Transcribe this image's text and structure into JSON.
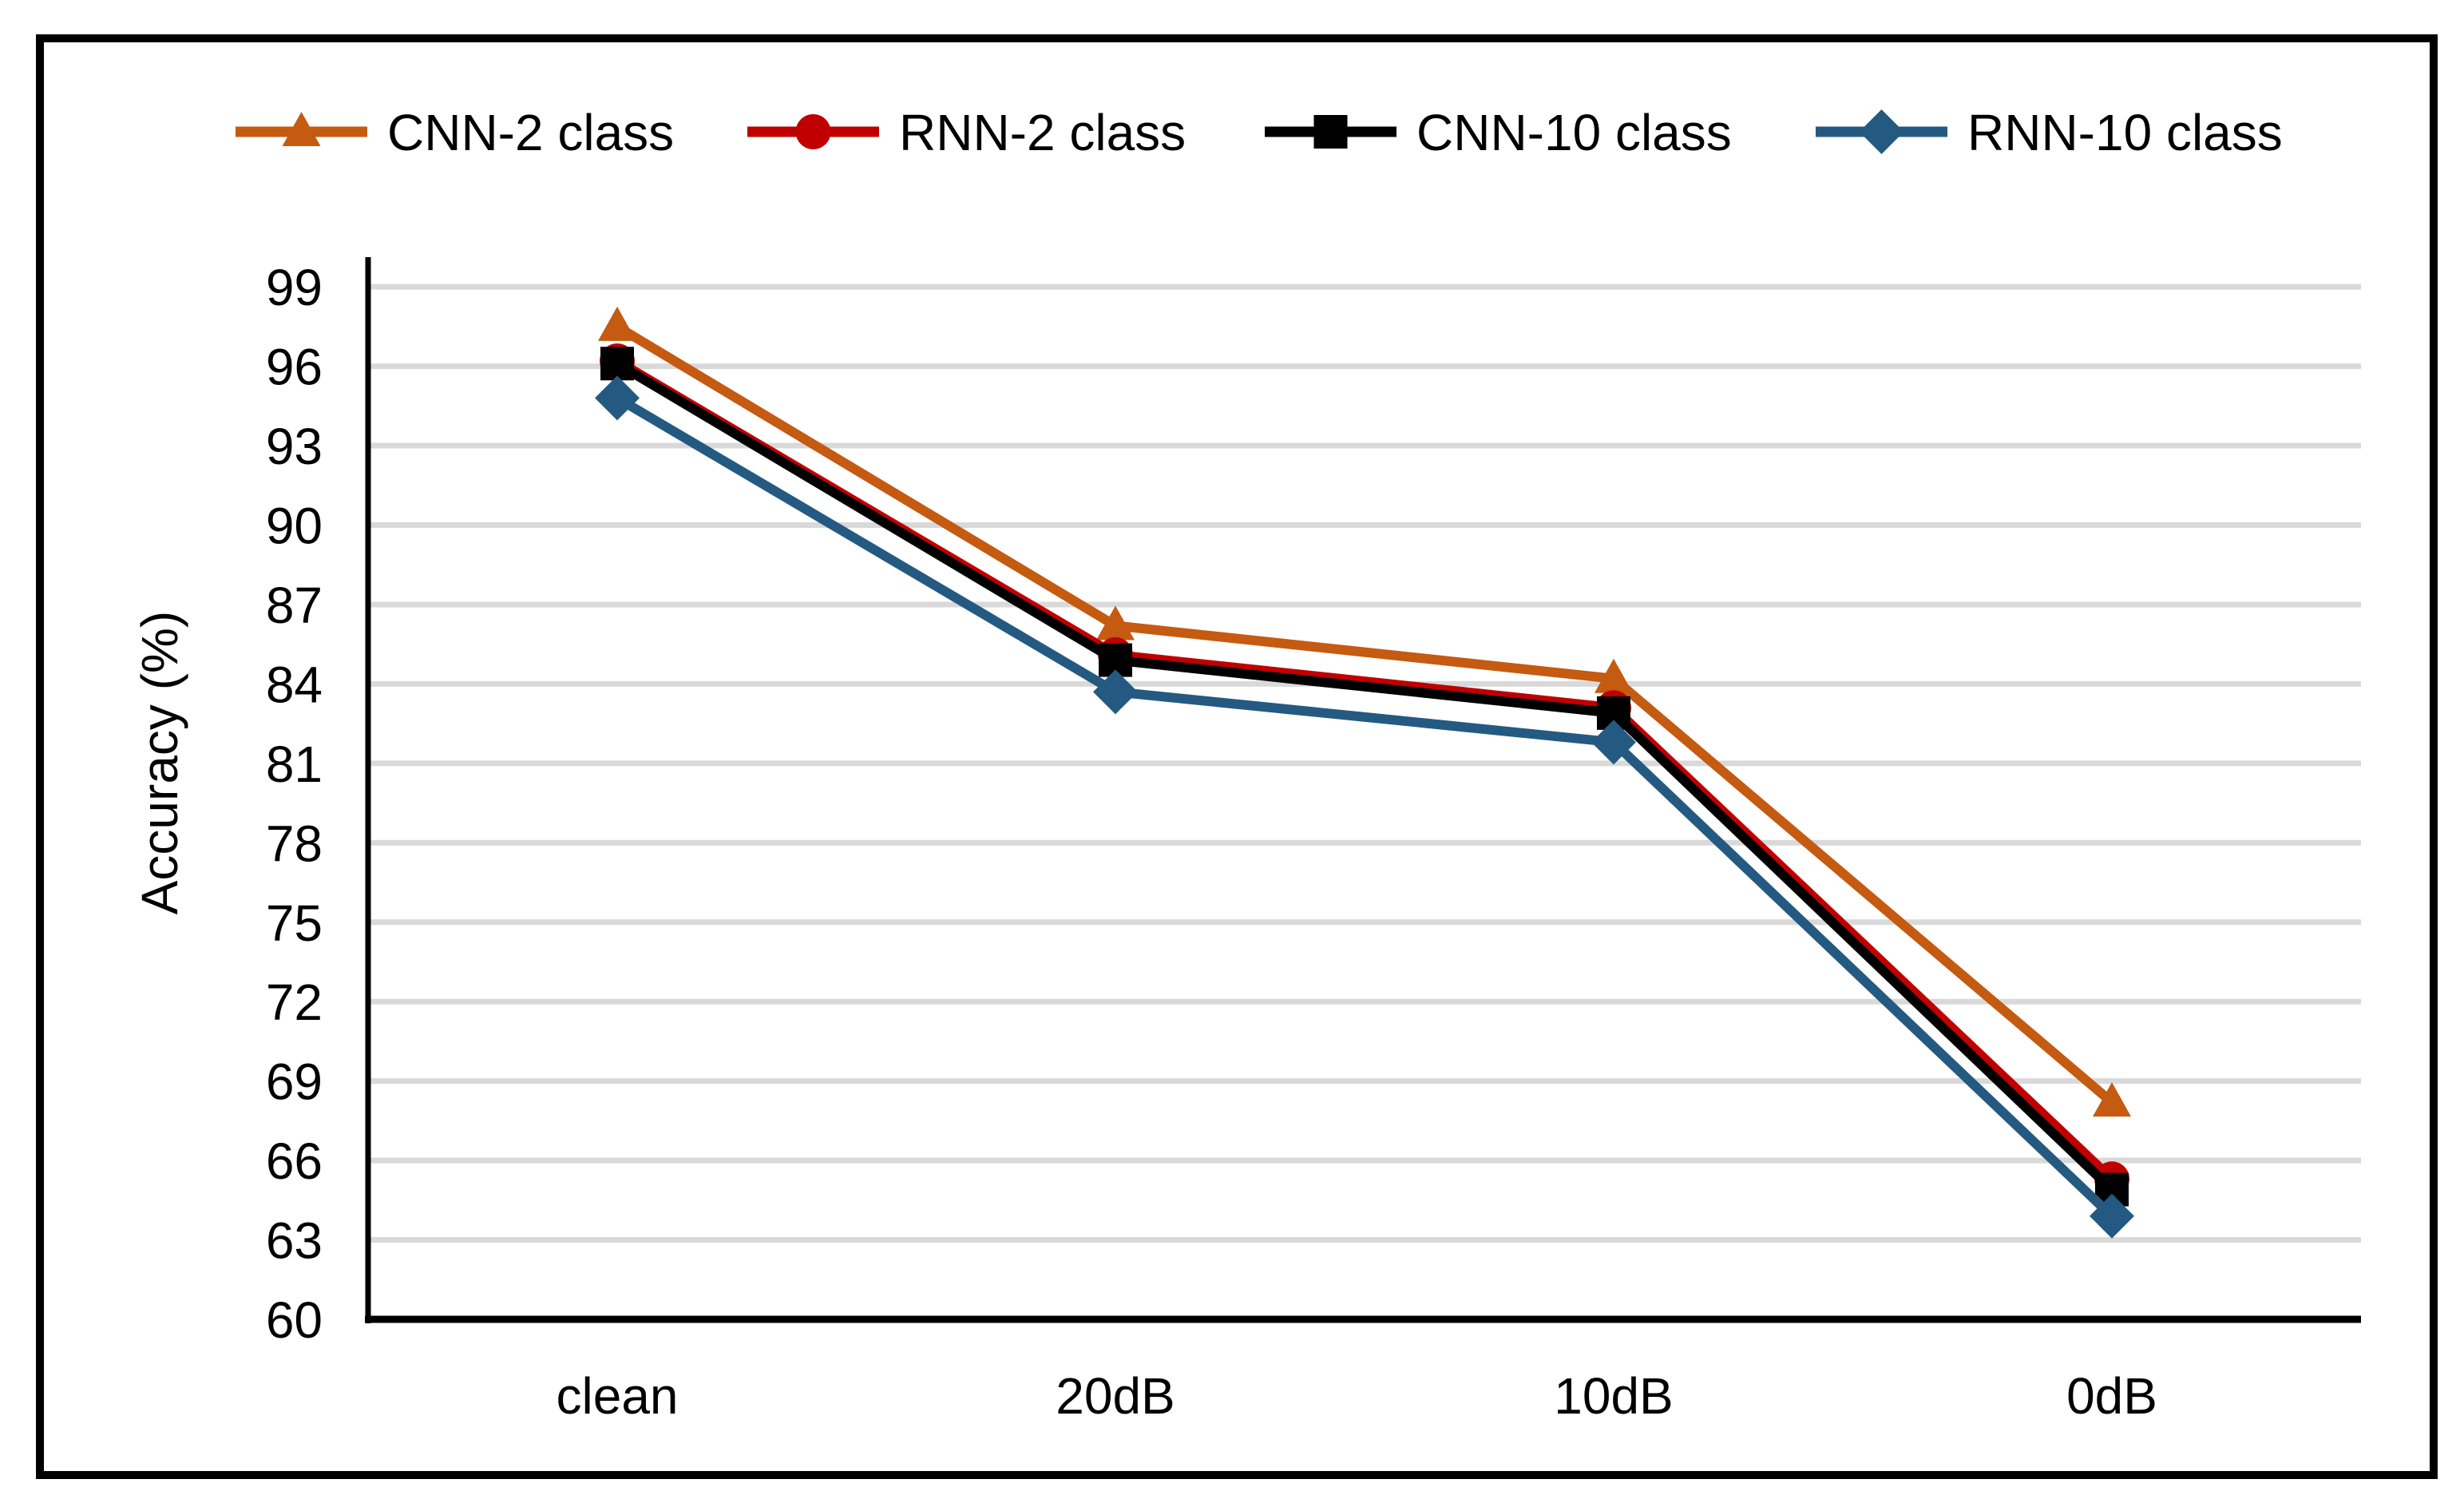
{
  "figure": {
    "background": "#FFFFFF",
    "border_color": "#000000"
  },
  "chart_data": {
    "type": "line",
    "title": "",
    "categories": [
      "clean",
      "20dB",
      "10dB",
      "0dB"
    ],
    "series": [
      {
        "name": "CNN-2 class",
        "marker": "triangle",
        "color": "#C55A11",
        "values": [
          97.5,
          86.2,
          84.2,
          68.2
        ]
      },
      {
        "name": "RNN-2 class",
        "marker": "circle",
        "color": "#C00000",
        "values": [
          96.2,
          85.1,
          83.1,
          65.3
        ]
      },
      {
        "name": "CNN-10 class",
        "marker": "square",
        "color": "#000000",
        "values": [
          96.1,
          84.9,
          82.9,
          64.9
        ]
      },
      {
        "name": "RNN-10 class",
        "marker": "diamond",
        "color": "#245A81",
        "values": [
          94.8,
          83.7,
          81.8,
          63.9
        ]
      }
    ],
    "xlabel": "",
    "ylabel": "Accuracy (%)",
    "ylim": [
      60,
      100
    ],
    "yticks": [
      60,
      63,
      66,
      69,
      72,
      75,
      78,
      81,
      84,
      87,
      90,
      93,
      96,
      99
    ],
    "grid": "horizontal",
    "gridline_color": "#D9D9D9",
    "axis_color": "#000000",
    "legend_position": "top",
    "legend_labels": [
      "CNN-2 class",
      "RNN-2 class",
      "CNN-10 class",
      "RNN-10 class"
    ]
  }
}
